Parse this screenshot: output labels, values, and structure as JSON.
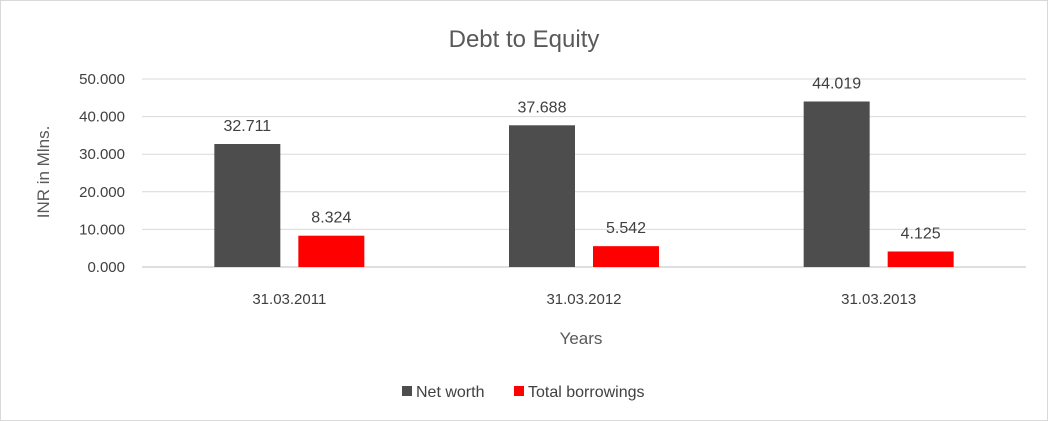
{
  "chart_data": {
    "type": "bar",
    "title": "Debt to Equity",
    "xlabel": "Years",
    "ylabel": "INR in Mlns.",
    "categories": [
      "31.03.2011",
      "31.03.2012",
      "31.03.2013"
    ],
    "series": [
      {
        "name": "Net worth",
        "values": [
          32.711,
          37.688,
          44.019
        ],
        "labels": [
          "32.711",
          "37.688",
          "44.019"
        ],
        "color": "#4d4d4d"
      },
      {
        "name": "Total borrowings",
        "values": [
          8.324,
          5.542,
          4.125
        ],
        "labels": [
          "8.324",
          "5.542",
          "4.125"
        ],
        "color": "#ff0000"
      }
    ],
    "ylim": [
      0,
      50
    ],
    "yticks": [
      "0.000",
      "10.000",
      "20.000",
      "30.000",
      "40.000",
      "50.000"
    ],
    "grid": true,
    "legend_position": "bottom"
  }
}
